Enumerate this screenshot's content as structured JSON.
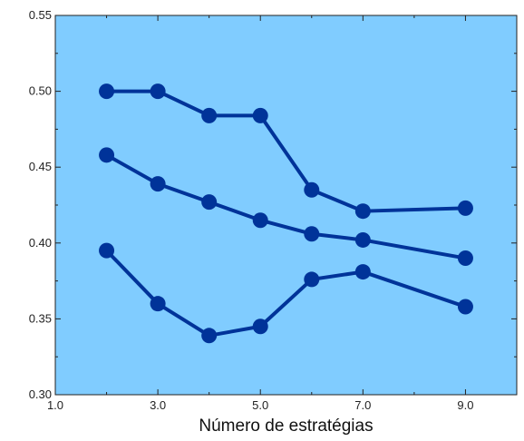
{
  "chart_data": {
    "type": "line",
    "title": "",
    "xlabel": "Número de estratégias",
    "ylabel": "",
    "xlim": [
      1.0,
      10.0
    ],
    "ylim": [
      0.3,
      0.55
    ],
    "x_ticks": [
      1.0,
      3.0,
      5.0,
      7.0,
      9.0
    ],
    "x_tick_labels": [
      "1.0",
      "3.0",
      "5.0",
      "7.0",
      "9.0"
    ],
    "y_ticks": [
      0.3,
      0.35,
      0.4,
      0.45,
      0.5,
      0.55
    ],
    "y_tick_labels": [
      "0.30",
      "0.35",
      "0.40",
      "0.45",
      "0.50",
      "0.55"
    ],
    "grid": false,
    "legend": "none",
    "x": [
      2,
      3,
      4,
      5,
      6,
      7,
      9
    ],
    "series": [
      {
        "values": [
          0.5,
          0.5,
          0.484,
          0.484,
          0.435,
          0.421,
          0.423
        ]
      },
      {
        "values": [
          0.458,
          0.439,
          0.427,
          0.415,
          0.406,
          0.402,
          0.39
        ]
      },
      {
        "values": [
          0.395,
          0.36,
          0.339,
          0.345,
          0.376,
          0.381,
          0.358
        ]
      }
    ],
    "colors": {
      "plot_background": "#80ccff",
      "series": "#003399",
      "axes": "#222222"
    }
  }
}
